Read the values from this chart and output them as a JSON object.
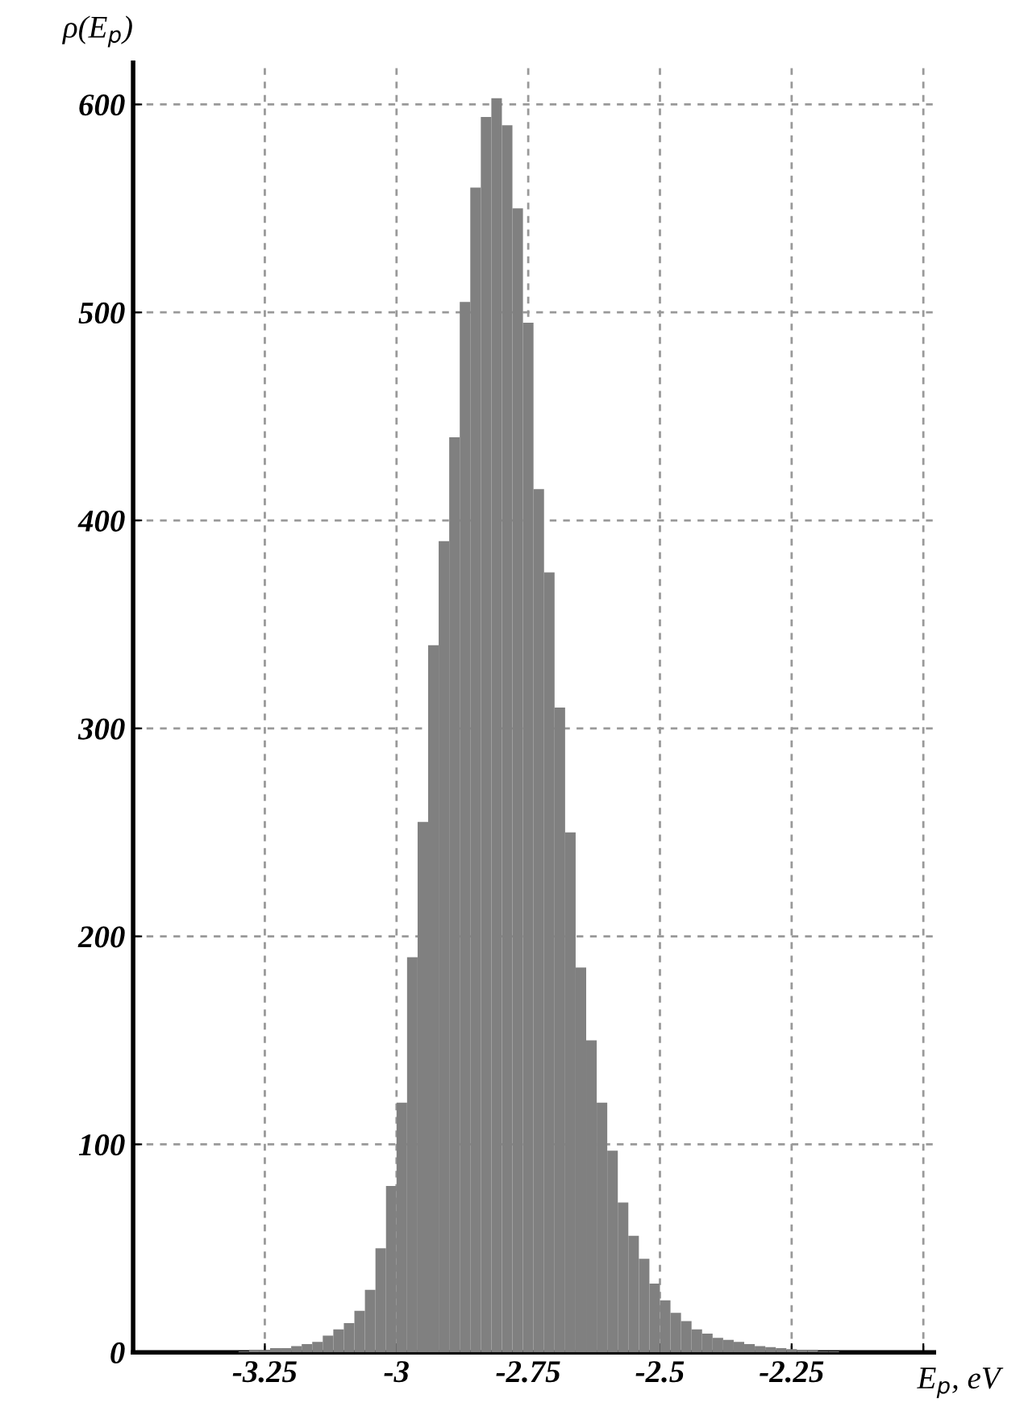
{
  "chart_data": {
    "type": "histogram",
    "xlabel": "E$_{p}$, eV",
    "ylabel": "ρ(E$_{p}$)",
    "bins": [
      -3.3,
      -3.28,
      -3.26,
      -3.24,
      -3.22,
      -3.2,
      -3.18,
      -3.16,
      -3.14,
      -3.12,
      -3.1,
      -3.08,
      -3.06,
      -3.04,
      -3.02,
      -3.0,
      -2.98,
      -2.96,
      -2.94,
      -2.92,
      -2.9,
      -2.88,
      -2.86,
      -2.84,
      -2.82,
      -2.8,
      -2.78,
      -2.76,
      -2.74,
      -2.72,
      -2.7,
      -2.68,
      -2.66,
      -2.64,
      -2.62,
      -2.6,
      -2.58,
      -2.56,
      -2.54,
      -2.52,
      -2.5,
      -2.48,
      -2.46,
      -2.44,
      -2.42,
      -2.4,
      -2.38,
      -2.36,
      -2.34,
      -2.32,
      -2.3,
      -2.28,
      -2.26,
      -2.24,
      -2.22,
      -2.2,
      -2.18,
      -2.16
    ],
    "values": [
      0.5,
      1,
      1,
      2,
      2,
      3,
      4,
      5,
      8,
      11,
      14,
      20,
      30,
      50,
      80,
      120,
      190,
      255,
      340,
      390,
      440,
      505,
      560,
      594,
      603,
      590,
      550,
      495,
      415,
      375,
      310,
      250,
      185,
      150,
      120,
      97,
      72,
      56,
      45,
      33,
      25,
      19,
      15,
      11,
      9,
      7,
      6,
      5,
      4,
      3,
      2.5,
      2,
      1.5,
      1,
      1,
      0.5,
      0.5
    ],
    "color": "#808080",
    "xlim": [
      -3.5,
      -1.98
    ],
    "xticks": [
      -3.25,
      -3,
      -2.75,
      -2.5,
      -2.25,
      {
        "value": -2,
        "label": null
      }
    ],
    "ylim": [
      0,
      620
    ],
    "yticks": [
      0,
      100,
      200,
      300,
      400,
      500,
      600
    ],
    "grid": true
  }
}
